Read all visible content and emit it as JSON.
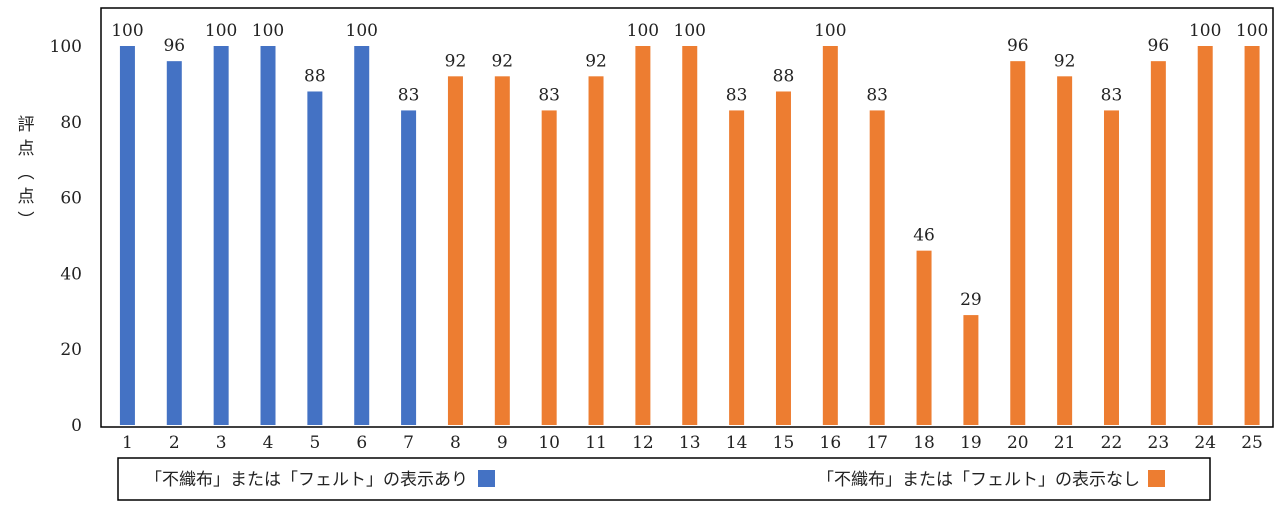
{
  "chart_data": {
    "type": "bar",
    "title": "",
    "xlabel": "",
    "ylabel": "評点（点）",
    "ylim": [
      0,
      100
    ],
    "yticks": [
      0,
      20,
      40,
      60,
      80,
      100
    ],
    "grid": false,
    "categories": [
      "1",
      "2",
      "3",
      "4",
      "5",
      "6",
      "7",
      "8",
      "9",
      "10",
      "11",
      "12",
      "13",
      "14",
      "15",
      "16",
      "17",
      "18",
      "19",
      "20",
      "21",
      "22",
      "23",
      "24",
      "25"
    ],
    "values": [
      100,
      96,
      100,
      100,
      88,
      100,
      83,
      92,
      92,
      83,
      92,
      100,
      100,
      83,
      88,
      100,
      83,
      46,
      29,
      96,
      92,
      83,
      96,
      100,
      100
    ],
    "data_labels": [
      "100",
      "96",
      "100",
      "100",
      "88",
      "100",
      "83",
      "92",
      "92",
      "83",
      "92",
      "100",
      "100",
      "83",
      "88",
      "100",
      "83",
      "46",
      "29",
      "96",
      "92",
      "83",
      "96",
      "100",
      "100"
    ],
    "bar_groups": [
      "with",
      "with",
      "with",
      "with",
      "with",
      "with",
      "with",
      "without",
      "without",
      "without",
      "without",
      "without",
      "without",
      "without",
      "without",
      "without",
      "without",
      "without",
      "without",
      "without",
      "without",
      "without",
      "without",
      "without",
      "without"
    ],
    "legend": {
      "placement": "bottom",
      "entries": [
        {
          "key": "with",
          "label": "「不織布」または「フェルト」の表示あり",
          "color": "#4472C4"
        },
        {
          "key": "without",
          "label": "「不織布」または「フェルト」の表示なし",
          "color": "#ED7D31"
        }
      ]
    }
  }
}
